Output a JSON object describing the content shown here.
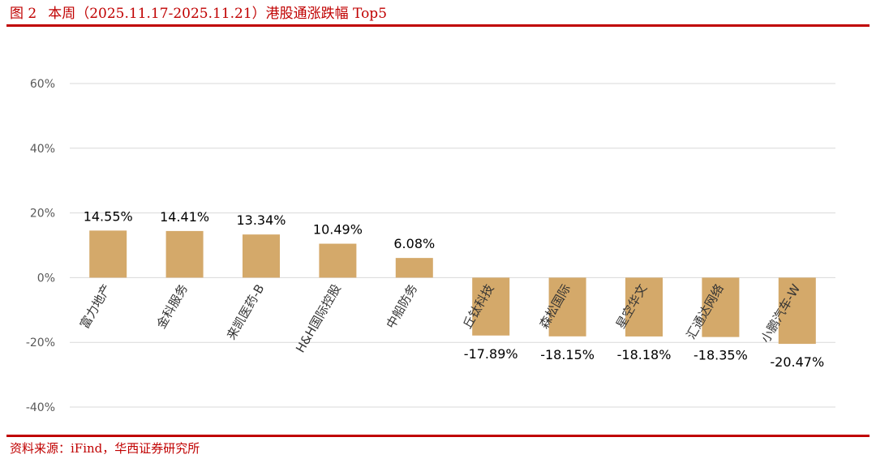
{
  "figure": {
    "number": "图 2",
    "title": "本周（2025.11.17-2025.11.21）港股通涨跌幅 Top5"
  },
  "source": "资料来源：iFind，华西证券研究所",
  "colors": {
    "accent": "#c00000",
    "bar": "#d4a96a",
    "grid": "#d9d9d9"
  },
  "chart_data": {
    "type": "bar",
    "categories": [
      "富力地产",
      "金科服务",
      "来凯医药-B",
      "H&H国际控股",
      "中船防务",
      "丘钛科技",
      "森松国际",
      "星空华文",
      "汇通达网络",
      "小鹏汽车-W"
    ],
    "values": [
      14.55,
      14.41,
      13.34,
      10.49,
      6.08,
      -17.89,
      -18.15,
      -18.18,
      -18.35,
      -20.47
    ],
    "data_labels": [
      "14.55%",
      "14.41%",
      "13.34%",
      "10.49%",
      "6.08%",
      "-17.89%",
      "-18.15%",
      "-18.18%",
      "-18.35%",
      "-20.47%"
    ],
    "ylim": [
      -40,
      60
    ],
    "yticks": [
      60,
      40,
      20,
      0,
      -20,
      -40
    ],
    "ytick_labels": [
      "60%",
      "40%",
      "20%",
      "0%",
      "-20%",
      "-40%"
    ],
    "grid": true,
    "legend": "none"
  }
}
